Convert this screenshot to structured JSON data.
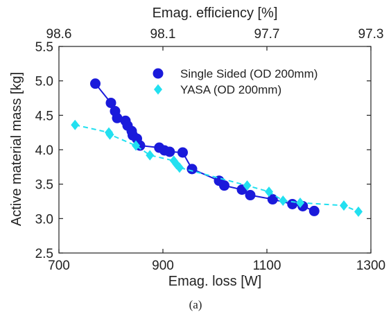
{
  "chart_data": {
    "type": "scatter",
    "xlabel": "Emag. loss [W]",
    "ylabel": "Active material mass [kg]",
    "top_xlabel": "Emag. efficiency [%]",
    "caption": "(a)",
    "xlim": [
      700,
      1300
    ],
    "ylim": [
      2.5,
      5.5
    ],
    "x_ticks": [
      "700",
      "900",
      "1100",
      "1300"
    ],
    "x_tick_values": [
      700,
      900,
      1100,
      1300
    ],
    "y_ticks": [
      "2.5",
      "3.0",
      "3.5",
      "4.0",
      "4.5",
      "5.0",
      "5.5"
    ],
    "y_tick_values": [
      2.5,
      3.0,
      3.5,
      4.0,
      4.5,
      5.0,
      5.5
    ],
    "top_ticks": [
      "98.6",
      "98.1",
      "97.7",
      "97.3"
    ],
    "top_tick_positions_in_loss": [
      700,
      900,
      1100,
      1300
    ],
    "grid": false,
    "legend_position": "top-right",
    "series": [
      {
        "name": "Single Sided (OD 200mm)",
        "marker": "circle",
        "line": "solid",
        "color": "#1a1adb",
        "x": [
          770,
          800,
          808,
          812,
          828,
          832,
          840,
          842,
          850,
          856,
          893,
          903,
          913,
          938,
          956,
          1008,
          1018,
          1052,
          1068,
          1111,
          1149,
          1169,
          1191
        ],
        "y": [
          4.96,
          4.68,
          4.56,
          4.46,
          4.42,
          4.35,
          4.27,
          4.21,
          4.16,
          4.06,
          4.03,
          3.99,
          3.97,
          3.96,
          3.72,
          3.55,
          3.48,
          3.42,
          3.34,
          3.28,
          3.21,
          3.18,
          3.11
        ]
      },
      {
        "name": "YASA (OD 200mm)",
        "marker": "diamond",
        "line": "dashed",
        "color": "#22e0f0",
        "x": [
          731,
          796,
          798,
          848,
          875,
          921,
          926,
          932,
          1062,
          1104,
          1131,
          1164,
          1248,
          1276
        ],
        "y": [
          4.36,
          4.25,
          4.22,
          4.06,
          3.92,
          3.84,
          3.79,
          3.74,
          3.48,
          3.39,
          3.26,
          3.23,
          3.19,
          3.1
        ]
      }
    ]
  }
}
